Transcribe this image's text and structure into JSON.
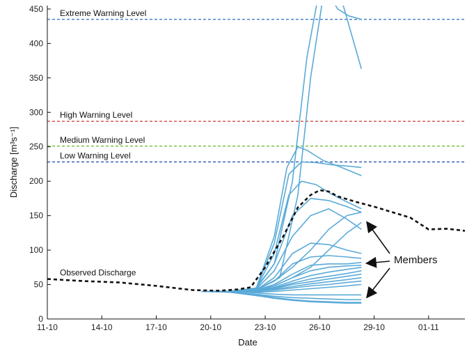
{
  "chart_data": {
    "type": "line",
    "xlabel": "Date",
    "ylabel": "Discharge [m³s⁻¹]",
    "x_tick_labels": [
      "11-10",
      "14-10",
      "17-10",
      "20-10",
      "23-10",
      "26-10",
      "29-10",
      "01-11"
    ],
    "x_tick_values": [
      0,
      3,
      6,
      9,
      12,
      15,
      18,
      21
    ],
    "x_unit": "days from 11-10",
    "xlim": [
      0,
      23
    ],
    "ylim": [
      0,
      455
    ],
    "y_ticks": [
      0,
      50,
      100,
      150,
      200,
      250,
      300,
      350,
      400,
      450
    ],
    "grid": false,
    "warning_levels": [
      {
        "name": "Extreme Warning Level",
        "value": 435,
        "color": "#3c78c8"
      },
      {
        "name": "High Warning Level",
        "value": 287,
        "color": "#d24a3c"
      },
      {
        "name": "Medium Warning Level",
        "value": 251,
        "color": "#7ec242"
      },
      {
        "name": "Low Warning Level",
        "value": 228,
        "color": "#3c5fb4"
      }
    ],
    "observed": {
      "name": "Observed Discharge",
      "color": "#111111",
      "x": [
        0,
        2,
        4,
        6,
        8,
        9.5,
        10.5,
        11.2,
        12,
        13,
        13.8,
        14.5,
        15,
        15.5,
        16,
        17,
        18,
        19,
        20,
        21,
        22,
        23
      ],
      "y": [
        58,
        55,
        53,
        48,
        42,
        41,
        43,
        46,
        75,
        120,
        162,
        180,
        187,
        185,
        178,
        170,
        163,
        155,
        147,
        130,
        131,
        128
      ]
    },
    "members_label": "Members",
    "members_color": "#5aaad8",
    "members": [
      {
        "x": [
          8.5,
          10,
          11.5,
          12.5,
          13.5,
          14.3,
          15,
          15.5,
          16,
          16.6,
          17.3
        ],
        "y": [
          40,
          40,
          45,
          80,
          200,
          380,
          480,
          470,
          450,
          440,
          435
        ]
      },
      {
        "x": [
          8.5,
          10,
          11.5,
          12.8,
          13.8,
          14.5,
          15.2,
          15.8,
          16.3,
          17.3
        ],
        "y": [
          40,
          40,
          42,
          60,
          180,
          350,
          470,
          470,
          455,
          363
        ]
      },
      {
        "x": [
          8.5,
          10,
          11.5,
          12.5,
          13.2,
          13.8,
          14.3,
          15.2,
          16.2,
          17.3
        ],
        "y": [
          40,
          40,
          44,
          120,
          220,
          250,
          245,
          230,
          220,
          208
        ]
      },
      {
        "x": [
          8.5,
          10,
          11.5,
          12.5,
          13.3,
          14,
          14.8,
          15.6,
          16.5,
          17.3
        ],
        "y": [
          40,
          40,
          44,
          110,
          210,
          228,
          227,
          224,
          222,
          220
        ]
      },
      {
        "x": [
          8.5,
          10,
          11.5,
          12.5,
          13.3,
          14,
          14.8,
          15.6,
          16.5,
          17.3
        ],
        "y": [
          40,
          40,
          44,
          95,
          180,
          200,
          195,
          182,
          170,
          160
        ]
      },
      {
        "x": [
          8.5,
          10,
          11.5,
          12.5,
          13.5,
          14.5,
          15.5,
          16.5,
          17.3
        ],
        "y": [
          40,
          40,
          44,
          80,
          150,
          175,
          172,
          163,
          155
        ]
      },
      {
        "x": [
          8.5,
          10,
          11.5,
          12.5,
          13.5,
          14.5,
          15.5,
          16.5,
          17.3
        ],
        "y": [
          40,
          40,
          43,
          70,
          120,
          150,
          160,
          145,
          130
        ]
      },
      {
        "x": [
          8.5,
          10,
          11.5,
          12.5,
          13.5,
          14.5,
          15.5,
          16.5,
          17.3
        ],
        "y": [
          40,
          40,
          43,
          55,
          75,
          100,
          130,
          150,
          155
        ]
      },
      {
        "x": [
          8.5,
          10,
          11.5,
          12.5,
          13.5,
          14.5,
          15.5,
          16.5,
          17.3
        ],
        "y": [
          40,
          40,
          42,
          48,
          60,
          75,
          100,
          125,
          140
        ]
      },
      {
        "x": [
          8.5,
          10,
          11.5,
          12.5,
          13.5,
          14.5,
          15.5,
          16.5,
          17.3
        ],
        "y": [
          40,
          40,
          42,
          60,
          95,
          110,
          108,
          100,
          95
        ]
      },
      {
        "x": [
          8.5,
          10,
          11.5,
          12.5,
          13.5,
          14.5,
          15.5,
          16.5,
          17.3
        ],
        "y": [
          40,
          40,
          42,
          55,
          80,
          90,
          92,
          90,
          88
        ]
      },
      {
        "x": [
          8.5,
          10,
          11.5,
          12.5,
          13.5,
          14.5,
          15.5,
          16.5,
          17.3
        ],
        "y": [
          40,
          40,
          42,
          50,
          65,
          78,
          80,
          80,
          82
        ]
      },
      {
        "x": [
          8.5,
          10,
          11.5,
          12.5,
          13.5,
          14.5,
          15.5,
          16.5,
          17.3
        ],
        "y": [
          40,
          40,
          41,
          48,
          60,
          70,
          75,
          77,
          78
        ]
      },
      {
        "x": [
          8.5,
          10,
          11.5,
          12.5,
          13.5,
          14.5,
          15.5,
          16.5,
          17.3
        ],
        "y": [
          40,
          40,
          41,
          46,
          55,
          63,
          68,
          72,
          75
        ]
      },
      {
        "x": [
          8.5,
          10,
          11.5,
          12.5,
          13.5,
          14.5,
          15.5,
          16.5,
          17.3
        ],
        "y": [
          40,
          40,
          41,
          45,
          52,
          58,
          62,
          66,
          70
        ]
      },
      {
        "x": [
          8.5,
          10,
          11.5,
          12.5,
          13.5,
          14.5,
          15.5,
          16.5,
          17.3
        ],
        "y": [
          40,
          40,
          40,
          44,
          50,
          54,
          58,
          62,
          65
        ]
      },
      {
        "x": [
          8.5,
          10,
          11.5,
          12.5,
          13.5,
          14.5,
          15.5,
          16.5,
          17.3
        ],
        "y": [
          40,
          40,
          40,
          43,
          47,
          51,
          54,
          57,
          60
        ]
      },
      {
        "x": [
          8.5,
          10,
          11.5,
          12.5,
          13.5,
          14.5,
          15.5,
          16.5,
          17.3
        ],
        "y": [
          40,
          40,
          40,
          42,
          45,
          48,
          50,
          53,
          55
        ]
      },
      {
        "x": [
          8.5,
          10,
          11.5,
          12.5,
          13.5,
          14.5,
          15.5,
          16.5,
          17.3
        ],
        "y": [
          40,
          40,
          39,
          40,
          42,
          44,
          46,
          48,
          50
        ]
      },
      {
        "x": [
          8.5,
          10,
          11.5,
          12.5,
          13.5,
          14.5,
          15.5,
          16.5,
          17.3
        ],
        "y": [
          40,
          40,
          38,
          36,
          35,
          35,
          35,
          35,
          35
        ]
      },
      {
        "x": [
          8.5,
          10,
          11.5,
          12.5,
          13.5,
          14.5,
          15.5,
          16.5,
          17.3
        ],
        "y": [
          40,
          39,
          36,
          33,
          31,
          30,
          29,
          28,
          28
        ]
      },
      {
        "x": [
          8.5,
          10,
          11.5,
          12.5,
          13.5,
          14.5,
          15.5,
          16.5,
          17.3
        ],
        "y": [
          40,
          39,
          35,
          31,
          28,
          26,
          25,
          24,
          24
        ]
      },
      {
        "x": [
          8.5,
          10,
          11.5,
          12.5,
          13.5,
          14.5,
          15.5,
          16.5,
          17.3
        ],
        "y": [
          40,
          39,
          34,
          30,
          27,
          25,
          24,
          23,
          23
        ]
      }
    ]
  }
}
